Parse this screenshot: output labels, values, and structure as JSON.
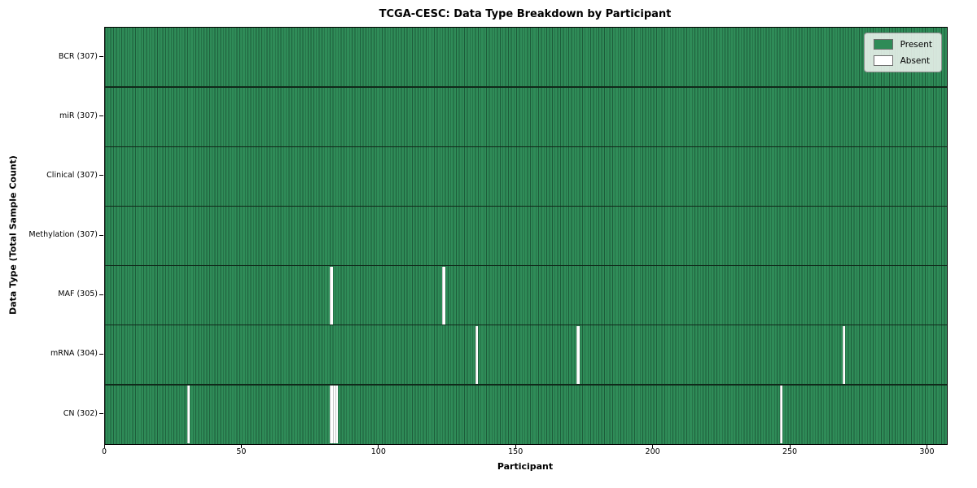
{
  "chart_data": {
    "type": "heatmap",
    "title": "TCGA-CESC: Data Type Breakdown by Participant",
    "xlabel": "Participant",
    "ylabel": "Data Type (Total Sample Count)",
    "n_participants": 307,
    "x_ticks": [
      0,
      50,
      100,
      150,
      200,
      250,
      300
    ],
    "rows": [
      {
        "label": "BCR (307)",
        "data_type": "BCR",
        "total_samples": 307,
        "absent_participants": []
      },
      {
        "label": "miR (307)",
        "data_type": "miR",
        "total_samples": 307,
        "absent_participants": []
      },
      {
        "label": "Clinical (307)",
        "data_type": "Clinical",
        "total_samples": 307,
        "absent_participants": []
      },
      {
        "label": "Methylation (307)",
        "data_type": "Methylation",
        "total_samples": 307,
        "absent_participants": []
      },
      {
        "label": "MAF (305)",
        "data_type": "MAF",
        "total_samples": 305,
        "absent_participants": [
          82,
          123
        ]
      },
      {
        "label": "mRNA (304)",
        "data_type": "mRNA",
        "total_samples": 304,
        "absent_participants": [
          135,
          172,
          269
        ]
      },
      {
        "label": "CN (302)",
        "data_type": "CN",
        "total_samples": 302,
        "absent_participants": [
          30,
          82,
          83,
          84,
          246
        ]
      }
    ],
    "legend": {
      "position": "upper right",
      "items": [
        {
          "label": "Present",
          "color": "#2e8b57"
        },
        {
          "label": "Absent",
          "color": "#ffffff"
        }
      ]
    },
    "colors": {
      "present": "#2e8b57",
      "bar_edge": "#1d5c3a",
      "absent": "#ffffff",
      "row_divider": "#10291a",
      "spine": "#000000"
    },
    "layout": {
      "grid": false,
      "legend_position": "upper right",
      "x_range": [
        0,
        307
      ]
    }
  }
}
